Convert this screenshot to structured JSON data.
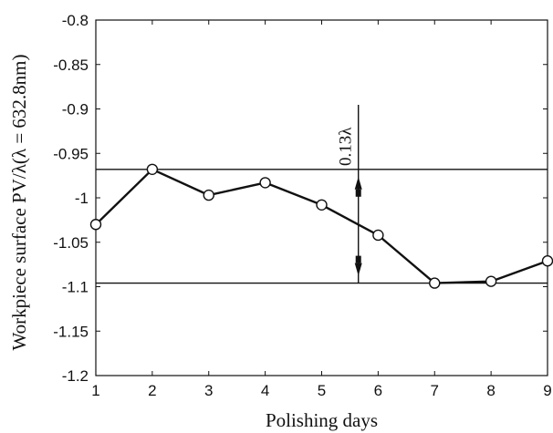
{
  "chart_data": {
    "type": "line",
    "xlabel": "Polishing days",
    "ylabel": "Workpiece surface PV/λ(λ = 632.8nm)",
    "xlim": [
      1,
      9
    ],
    "ylim": [
      -1.2,
      -0.8
    ],
    "xticks": [
      "1",
      "2",
      "3",
      "4",
      "5",
      "6",
      "7",
      "8",
      "9"
    ],
    "yticks": [
      "-0.8",
      "-0.85",
      "-0.9",
      "-0.95",
      "-1",
      "-1.05",
      "-1.1",
      "-1.15",
      "-1.2"
    ],
    "grid": false,
    "series": [
      {
        "x": [
          1,
          2,
          3,
          4,
          5,
          6,
          7,
          8,
          9
        ],
        "y": [
          -1.03,
          -0.968,
          -0.997,
          -0.983,
          -1.008,
          -1.042,
          -1.096,
          -1.094,
          -1.071
        ],
        "marker": "circle",
        "color": "#111111"
      }
    ],
    "reference_lines": [
      -0.968,
      -1.096
    ],
    "annotation": {
      "text": "0.13λ",
      "x": 5.65,
      "y_top": -0.968,
      "y_bottom": -1.096
    }
  }
}
